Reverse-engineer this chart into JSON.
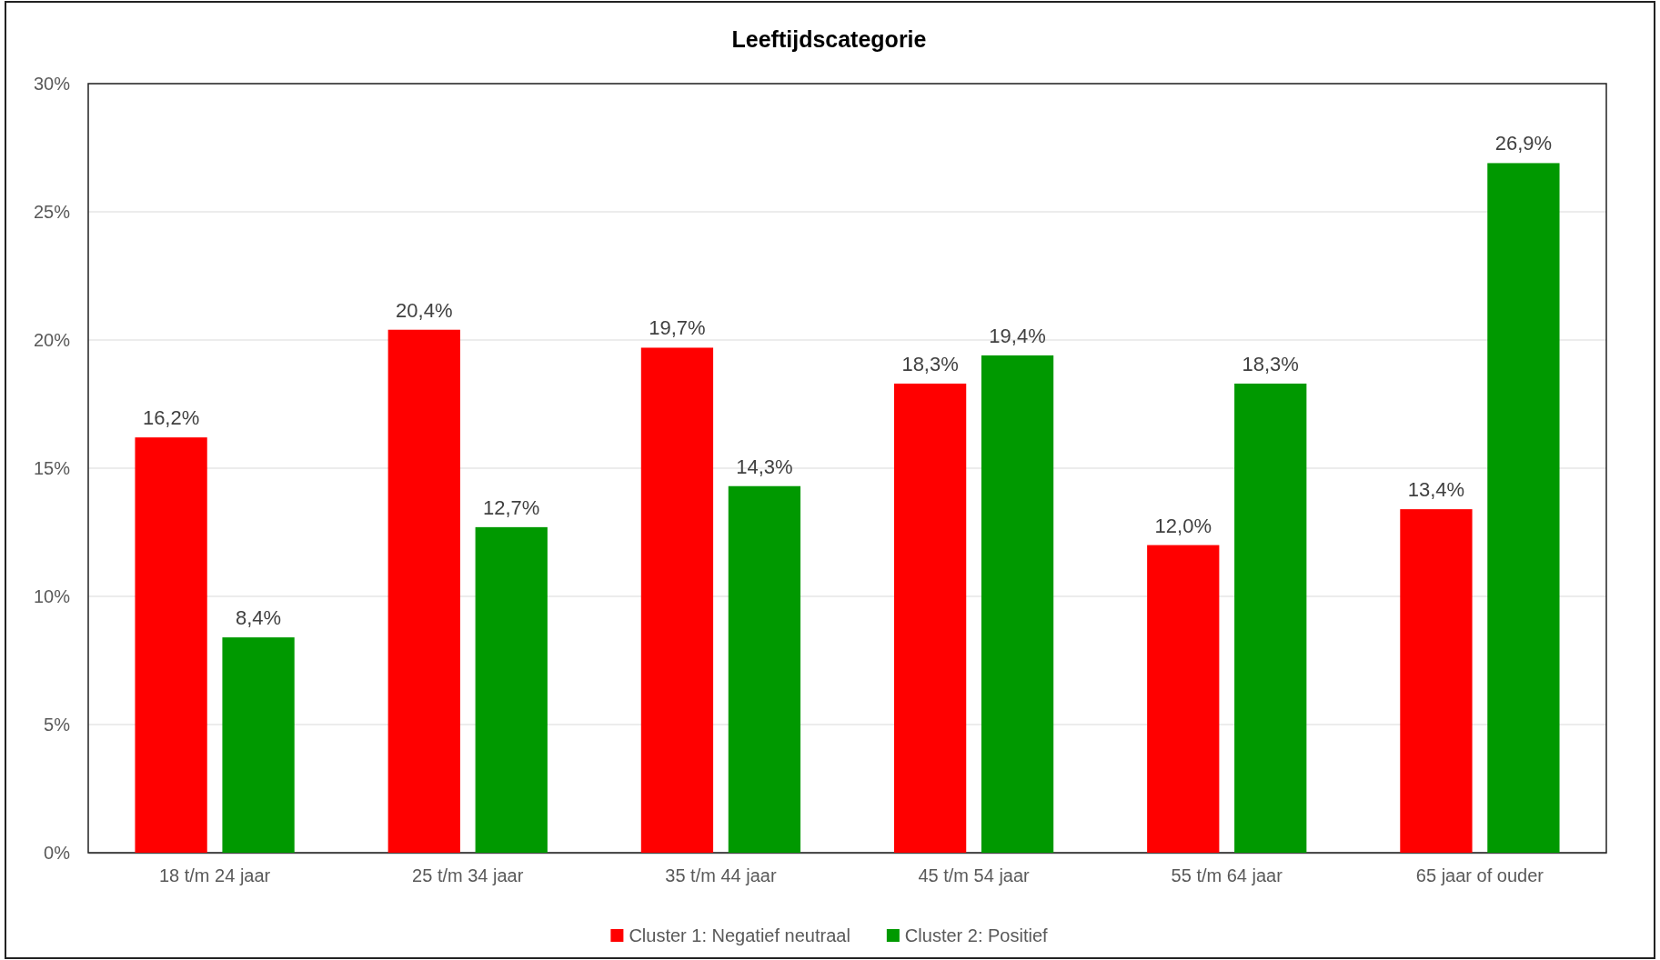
{
  "chart_data": {
    "type": "bar",
    "title": "Leeftijdscategorie",
    "categories": [
      "18 t/m 24 jaar",
      "25 t/m 34 jaar",
      "35 t/m 44 jaar",
      "45 t/m 54 jaar",
      "55 t/m 64 jaar",
      "65 jaar of ouder"
    ],
    "series": [
      {
        "name": "Cluster 1: Negatief neutraal",
        "color": "#ff0000",
        "values": [
          16.2,
          20.4,
          19.7,
          18.3,
          12.0,
          13.4
        ],
        "value_labels": [
          "16,2%",
          "20,4%",
          "19,7%",
          "18,3%",
          "12,0%",
          "13,4%"
        ]
      },
      {
        "name": "Cluster 2: Positief",
        "color": "#009900",
        "values": [
          8.4,
          12.7,
          14.3,
          19.4,
          18.3,
          26.9
        ],
        "value_labels": [
          "8,4%",
          "12,7%",
          "14,3%",
          "19,4%",
          "18,3%",
          "26,9%"
        ]
      }
    ],
    "ylim": [
      0,
      30
    ],
    "yticks": [
      {
        "value": 0,
        "label": "0%"
      },
      {
        "value": 5,
        "label": "5%"
      },
      {
        "value": 10,
        "label": "10%"
      },
      {
        "value": 15,
        "label": "15%"
      },
      {
        "value": 20,
        "label": "20%"
      },
      {
        "value": 25,
        "label": "25%"
      },
      {
        "value": 30,
        "label": "30%"
      }
    ],
    "grid": "y",
    "legend": "bottom"
  }
}
